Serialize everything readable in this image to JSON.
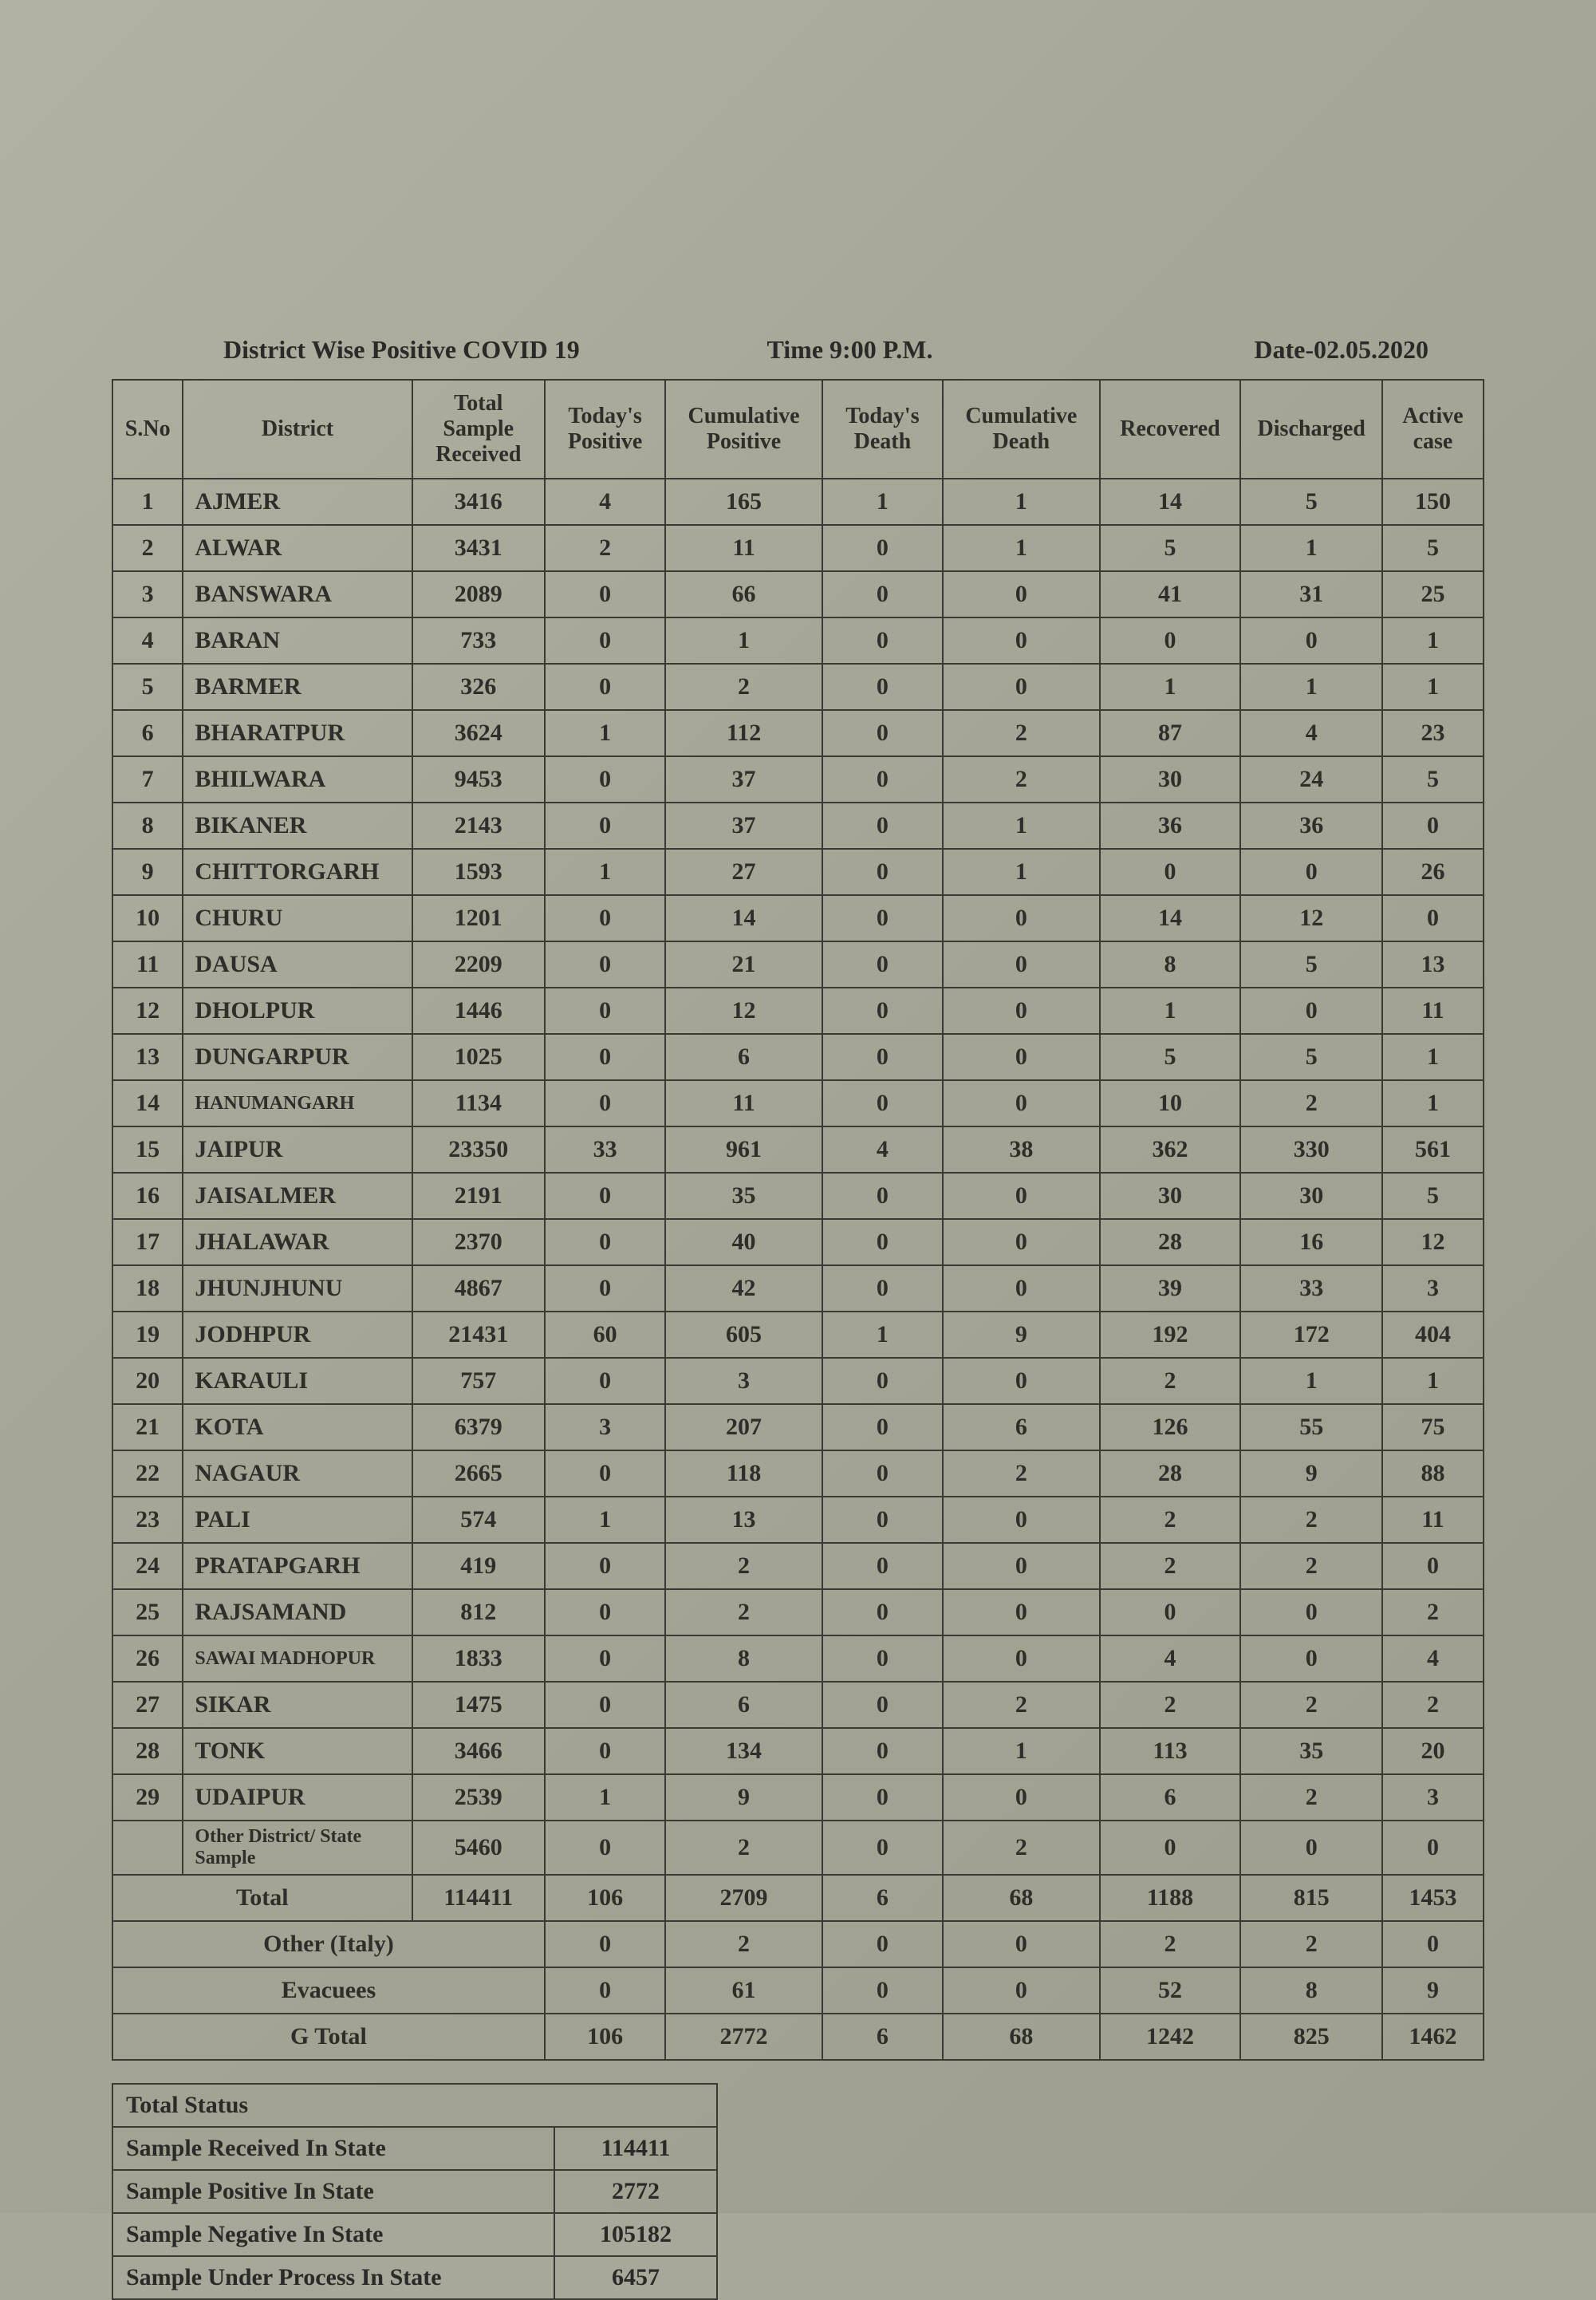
{
  "header": {
    "title": "District Wise Positive COVID 19",
    "time": "Time 9:00 P.M.",
    "date": "Date-02.05.2020"
  },
  "columns": [
    "S.No",
    "District",
    "Total Sample Received",
    "Today's Positive",
    "Cumulative Positive",
    "Today's Death",
    "Cumulative Death",
    "Recovered",
    "Discharged",
    "Active case"
  ],
  "rows": [
    {
      "sno": "1",
      "district": "AJMER",
      "sample": "3416",
      "tpos": "4",
      "cpos": "165",
      "tdeath": "1",
      "cdeath": "1",
      "rec": "14",
      "dis": "5",
      "act": "150"
    },
    {
      "sno": "2",
      "district": "ALWAR",
      "sample": "3431",
      "tpos": "2",
      "cpos": "11",
      "tdeath": "0",
      "cdeath": "1",
      "rec": "5",
      "dis": "1",
      "act": "5"
    },
    {
      "sno": "3",
      "district": "BANSWARA",
      "sample": "2089",
      "tpos": "0",
      "cpos": "66",
      "tdeath": "0",
      "cdeath": "0",
      "rec": "41",
      "dis": "31",
      "act": "25"
    },
    {
      "sno": "4",
      "district": "BARAN",
      "sample": "733",
      "tpos": "0",
      "cpos": "1",
      "tdeath": "0",
      "cdeath": "0",
      "rec": "0",
      "dis": "0",
      "act": "1"
    },
    {
      "sno": "5",
      "district": "BARMER",
      "sample": "326",
      "tpos": "0",
      "cpos": "2",
      "tdeath": "0",
      "cdeath": "0",
      "rec": "1",
      "dis": "1",
      "act": "1"
    },
    {
      "sno": "6",
      "district": "BHARATPUR",
      "sample": "3624",
      "tpos": "1",
      "cpos": "112",
      "tdeath": "0",
      "cdeath": "2",
      "rec": "87",
      "dis": "4",
      "act": "23"
    },
    {
      "sno": "7",
      "district": "BHILWARA",
      "sample": "9453",
      "tpos": "0",
      "cpos": "37",
      "tdeath": "0",
      "cdeath": "2",
      "rec": "30",
      "dis": "24",
      "act": "5"
    },
    {
      "sno": "8",
      "district": "BIKANER",
      "sample": "2143",
      "tpos": "0",
      "cpos": "37",
      "tdeath": "0",
      "cdeath": "1",
      "rec": "36",
      "dis": "36",
      "act": "0"
    },
    {
      "sno": "9",
      "district": "CHITTORGARH",
      "sample": "1593",
      "tpos": "1",
      "cpos": "27",
      "tdeath": "0",
      "cdeath": "1",
      "rec": "0",
      "dis": "0",
      "act": "26"
    },
    {
      "sno": "10",
      "district": "CHURU",
      "sample": "1201",
      "tpos": "0",
      "cpos": "14",
      "tdeath": "0",
      "cdeath": "0",
      "rec": "14",
      "dis": "12",
      "act": "0"
    },
    {
      "sno": "11",
      "district": "DAUSA",
      "sample": "2209",
      "tpos": "0",
      "cpos": "21",
      "tdeath": "0",
      "cdeath": "0",
      "rec": "8",
      "dis": "5",
      "act": "13"
    },
    {
      "sno": "12",
      "district": "DHOLPUR",
      "sample": "1446",
      "tpos": "0",
      "cpos": "12",
      "tdeath": "0",
      "cdeath": "0",
      "rec": "1",
      "dis": "0",
      "act": "11"
    },
    {
      "sno": "13",
      "district": "DUNGARPUR",
      "sample": "1025",
      "tpos": "0",
      "cpos": "6",
      "tdeath": "0",
      "cdeath": "0",
      "rec": "5",
      "dis": "5",
      "act": "1"
    },
    {
      "sno": "14",
      "district": "HANUMANGARH",
      "sample": "1134",
      "tpos": "0",
      "cpos": "11",
      "tdeath": "0",
      "cdeath": "0",
      "rec": "10",
      "dis": "2",
      "act": "1",
      "small": true
    },
    {
      "sno": "15",
      "district": "JAIPUR",
      "sample": "23350",
      "tpos": "33",
      "cpos": "961",
      "tdeath": "4",
      "cdeath": "38",
      "rec": "362",
      "dis": "330",
      "act": "561"
    },
    {
      "sno": "16",
      "district": "JAISALMER",
      "sample": "2191",
      "tpos": "0",
      "cpos": "35",
      "tdeath": "0",
      "cdeath": "0",
      "rec": "30",
      "dis": "30",
      "act": "5"
    },
    {
      "sno": "17",
      "district": "JHALAWAR",
      "sample": "2370",
      "tpos": "0",
      "cpos": "40",
      "tdeath": "0",
      "cdeath": "0",
      "rec": "28",
      "dis": "16",
      "act": "12"
    },
    {
      "sno": "18",
      "district": "JHUNJHUNU",
      "sample": "4867",
      "tpos": "0",
      "cpos": "42",
      "tdeath": "0",
      "cdeath": "0",
      "rec": "39",
      "dis": "33",
      "act": "3"
    },
    {
      "sno": "19",
      "district": "JODHPUR",
      "sample": "21431",
      "tpos": "60",
      "cpos": "605",
      "tdeath": "1",
      "cdeath": "9",
      "rec": "192",
      "dis": "172",
      "act": "404"
    },
    {
      "sno": "20",
      "district": "KARAULI",
      "sample": "757",
      "tpos": "0",
      "cpos": "3",
      "tdeath": "0",
      "cdeath": "0",
      "rec": "2",
      "dis": "1",
      "act": "1"
    },
    {
      "sno": "21",
      "district": "KOTA",
      "sample": "6379",
      "tpos": "3",
      "cpos": "207",
      "tdeath": "0",
      "cdeath": "6",
      "rec": "126",
      "dis": "55",
      "act": "75"
    },
    {
      "sno": "22",
      "district": "NAGAUR",
      "sample": "2665",
      "tpos": "0",
      "cpos": "118",
      "tdeath": "0",
      "cdeath": "2",
      "rec": "28",
      "dis": "9",
      "act": "88"
    },
    {
      "sno": "23",
      "district": "PALI",
      "sample": "574",
      "tpos": "1",
      "cpos": "13",
      "tdeath": "0",
      "cdeath": "0",
      "rec": "2",
      "dis": "2",
      "act": "11"
    },
    {
      "sno": "24",
      "district": "PRATAPGARH",
      "sample": "419",
      "tpos": "0",
      "cpos": "2",
      "tdeath": "0",
      "cdeath": "0",
      "rec": "2",
      "dis": "2",
      "act": "0"
    },
    {
      "sno": "25",
      "district": "RAJSAMAND",
      "sample": "812",
      "tpos": "0",
      "cpos": "2",
      "tdeath": "0",
      "cdeath": "0",
      "rec": "0",
      "dis": "0",
      "act": "2"
    },
    {
      "sno": "26",
      "district": "SAWAI MADHOPUR",
      "sample": "1833",
      "tpos": "0",
      "cpos": "8",
      "tdeath": "0",
      "cdeath": "0",
      "rec": "4",
      "dis": "0",
      "act": "4",
      "small": true
    },
    {
      "sno": "27",
      "district": "SIKAR",
      "sample": "1475",
      "tpos": "0",
      "cpos": "6",
      "tdeath": "0",
      "cdeath": "2",
      "rec": "2",
      "dis": "2",
      "act": "2"
    },
    {
      "sno": "28",
      "district": "TONK",
      "sample": "3466",
      "tpos": "0",
      "cpos": "134",
      "tdeath": "0",
      "cdeath": "1",
      "rec": "113",
      "dis": "35",
      "act": "20"
    },
    {
      "sno": "29",
      "district": "UDAIPUR",
      "sample": "2539",
      "tpos": "1",
      "cpos": "9",
      "tdeath": "0",
      "cdeath": "0",
      "rec": "6",
      "dis": "2",
      "act": "3"
    }
  ],
  "other_row": {
    "label": "Other District/ State Sample",
    "sample": "5460",
    "tpos": "0",
    "cpos": "2",
    "tdeath": "0",
    "cdeath": "2",
    "rec": "0",
    "dis": "0",
    "act": "0"
  },
  "totals": {
    "total": {
      "label": "Total",
      "sample": "114411",
      "tpos": "106",
      "cpos": "2709",
      "tdeath": "6",
      "cdeath": "68",
      "rec": "1188",
      "dis": "815",
      "act": "1453"
    },
    "other_italy": {
      "label": "Other (Italy)",
      "tpos": "0",
      "cpos": "2",
      "tdeath": "0",
      "cdeath": "0",
      "rec": "2",
      "dis": "2",
      "act": "0"
    },
    "evacuees": {
      "label": "Evacuees",
      "tpos": "0",
      "cpos": "61",
      "tdeath": "0",
      "cdeath": "0",
      "rec": "52",
      "dis": "8",
      "act": "9"
    },
    "gtotal": {
      "label": "G Total",
      "tpos": "106",
      "cpos": "2772",
      "tdeath": "6",
      "cdeath": "68",
      "rec": "1242",
      "dis": "825",
      "act": "1462"
    }
  },
  "status": {
    "title": "Total Status",
    "rows": [
      {
        "label": "Sample Received In State",
        "value": "114411"
      },
      {
        "label": "Sample Positive In State",
        "value": "2772"
      },
      {
        "label": "Sample Negative In State",
        "value": "105182"
      },
      {
        "label": "Sample Under Process In State",
        "value": "6457"
      }
    ]
  }
}
